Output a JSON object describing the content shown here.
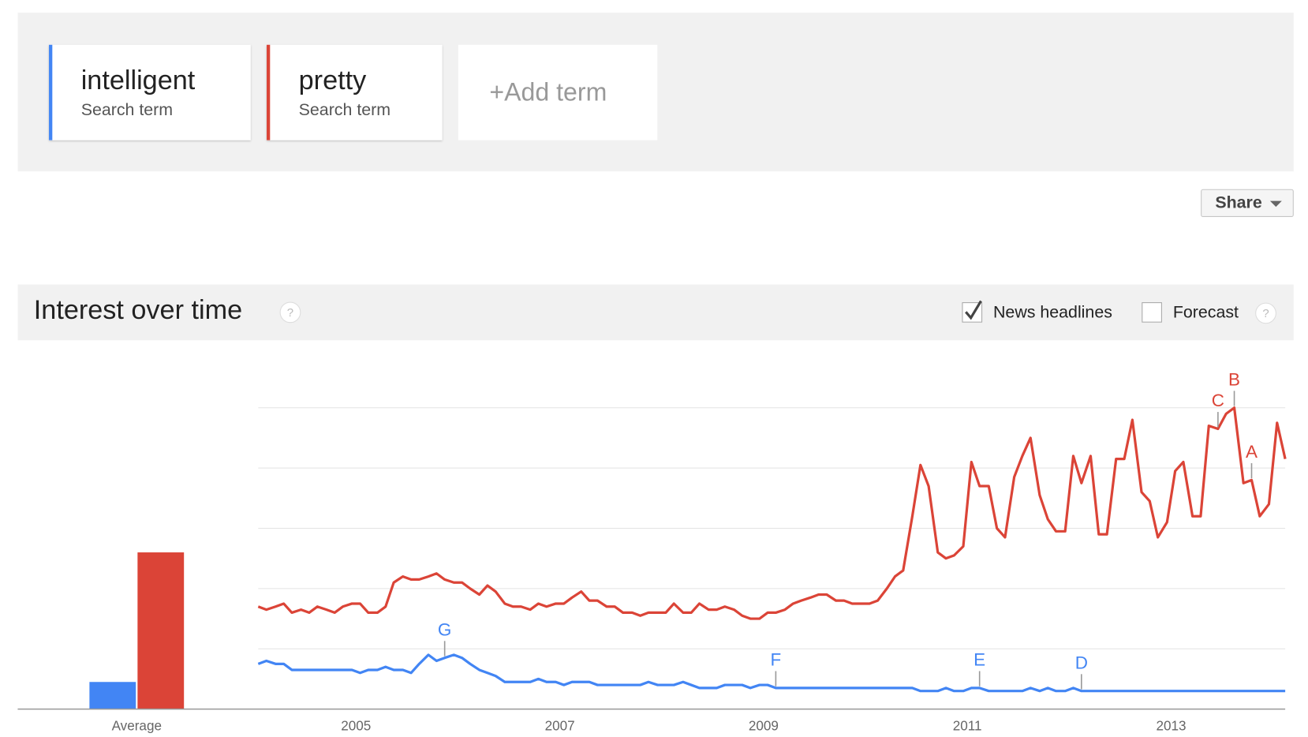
{
  "search_terms": [
    {
      "subtitle": "Search term"
    },
    {
      "subtitle": "Search term"
    }
  ],
  "add_term": "+Add term",
  "share": "Share",
  "section": {
    "title": "Interest over time",
    "help": "?",
    "news_headlines": "News headlines",
    "news_checked": true,
    "forecast": "Forecast",
    "forecast_checked": false,
    "forecast_help": "?"
  },
  "chart_data": [
    {
      "type": "bar",
      "categories": [
        "Average"
      ],
      "ylim": [
        0,
        100
      ],
      "series": [
        {
          "color": "#4285f4",
          "values": [
            9
          ]
        },
        {
          "color": "#db4437",
          "values": [
            52
          ]
        }
      ]
    },
    {
      "type": "line",
      "ylim": [
        0,
        100
      ],
      "yticks": [
        0,
        20,
        40,
        60,
        80,
        100
      ],
      "grid": true,
      "xlim": [
        2004.04,
        2014.12
      ],
      "xticks": [
        2005,
        2007,
        2009,
        2011,
        2013
      ],
      "x": [
        2004.04,
        2004.12,
        2004.21,
        2004.29,
        2004.37,
        2004.46,
        2004.54,
        2004.62,
        2004.71,
        2004.79,
        2004.87,
        2004.96,
        2005.04,
        2005.12,
        2005.21,
        2005.29,
        2005.37,
        2005.46,
        2005.54,
        2005.62,
        2005.71,
        2005.79,
        2005.87,
        2005.96,
        2006.04,
        2006.12,
        2006.21,
        2006.29,
        2006.37,
        2006.46,
        2006.54,
        2006.62,
        2006.71,
        2006.79,
        2006.87,
        2006.96,
        2007.04,
        2007.12,
        2007.21,
        2007.29,
        2007.37,
        2007.46,
        2007.54,
        2007.62,
        2007.71,
        2007.79,
        2007.87,
        2007.96,
        2008.04,
        2008.12,
        2008.21,
        2008.29,
        2008.37,
        2008.46,
        2008.54,
        2008.62,
        2008.71,
        2008.79,
        2008.87,
        2008.96,
        2009.04,
        2009.12,
        2009.21,
        2009.29,
        2009.37,
        2009.46,
        2009.54,
        2009.62,
        2009.71,
        2009.79,
        2009.87,
        2009.96,
        2010.04,
        2010.12,
        2010.21,
        2010.29,
        2010.37,
        2010.46,
        2010.54,
        2010.62,
        2010.71,
        2010.79,
        2010.87,
        2010.96,
        2011.04,
        2011.12,
        2011.21,
        2011.29,
        2011.37,
        2011.46,
        2011.54,
        2011.62,
        2011.71,
        2011.79,
        2011.87,
        2011.96,
        2012.04,
        2012.12,
        2012.21,
        2012.29,
        2012.37,
        2012.46,
        2012.54,
        2012.62,
        2012.71,
        2012.79,
        2012.87,
        2012.96,
        2013.04,
        2013.12,
        2013.21,
        2013.29,
        2013.37,
        2013.46,
        2013.54,
        2013.62,
        2013.71,
        2013.79,
        2013.87,
        2013.96,
        2014.04,
        2014.12
      ],
      "series": [
        {
          "name": "intelligent",
          "color": "#4285f4",
          "values": [
            15,
            16,
            15,
            15,
            13,
            13,
            13,
            13,
            13,
            13,
            13,
            13,
            12,
            13,
            13,
            14,
            13,
            13,
            12,
            15,
            18,
            16,
            17,
            18,
            17,
            15,
            13,
            12,
            11,
            9,
            9,
            9,
            9,
            10,
            9,
            9,
            8,
            9,
            9,
            9,
            8,
            8,
            8,
            8,
            8,
            8,
            9,
            8,
            8,
            8,
            9,
            8,
            7,
            7,
            7,
            8,
            8,
            8,
            7,
            8,
            8,
            7,
            7,
            7,
            7,
            7,
            7,
            7,
            7,
            7,
            7,
            7,
            7,
            7,
            7,
            7,
            7,
            7,
            6,
            6,
            6,
            7,
            6,
            6,
            7,
            7,
            6,
            6,
            6,
            6,
            6,
            7,
            6,
            7,
            6,
            6,
            7,
            6,
            6,
            6,
            6,
            6,
            6,
            6,
            6,
            6,
            6,
            6,
            6,
            6,
            6,
            6,
            6,
            6,
            6,
            6,
            6,
            6,
            6,
            6,
            6,
            6
          ],
          "annotations": [
            {
              "label": "G",
              "x": 2005.87
            },
            {
              "label": "F",
              "x": 2009.12
            },
            {
              "label": "E",
              "x": 2011.12
            },
            {
              "label": "D",
              "x": 2012.12
            }
          ]
        },
        {
          "name": "pretty",
          "color": "#db4437",
          "values": [
            34,
            33,
            34,
            35,
            32,
            33,
            32,
            34,
            33,
            32,
            34,
            35,
            35,
            32,
            32,
            34,
            42,
            44,
            43,
            43,
            44,
            45,
            43,
            42,
            42,
            40,
            38,
            41,
            39,
            35,
            34,
            34,
            33,
            35,
            34,
            35,
            35,
            37,
            39,
            36,
            36,
            34,
            34,
            32,
            32,
            31,
            32,
            32,
            32,
            35,
            32,
            32,
            35,
            33,
            33,
            34,
            33,
            31,
            30,
            30,
            32,
            32,
            33,
            35,
            36,
            37,
            38,
            38,
            36,
            36,
            35,
            35,
            35,
            36,
            40,
            44,
            46,
            64,
            81,
            74,
            52,
            50,
            51,
            54,
            82,
            74,
            74,
            60,
            57,
            77,
            84,
            90,
            71,
            63,
            59,
            59,
            84,
            75,
            84,
            58,
            58,
            83,
            83,
            96,
            72,
            69,
            57,
            62,
            79,
            82,
            64,
            64,
            94,
            93,
            98,
            100,
            75,
            76,
            64,
            68,
            95,
            83
          ],
          "annotations": [
            {
              "label": "C",
              "x": 2013.46
            },
            {
              "label": "B",
              "x": 2013.62
            },
            {
              "label": "A",
              "x": 2013.79
            }
          ]
        }
      ]
    }
  ]
}
